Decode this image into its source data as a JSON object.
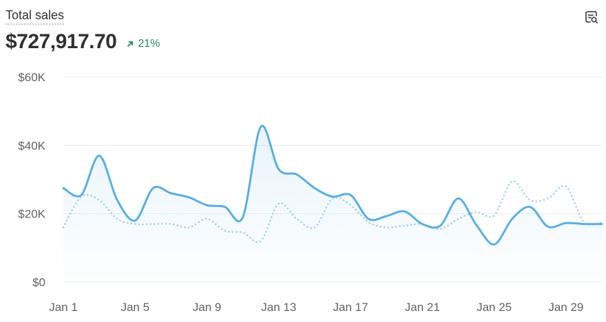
{
  "card": {
    "title": "Total sales",
    "total": "$727,917.70",
    "delta": "21%",
    "delta_color": "#29845a",
    "delta_icon": "arrow-up-right-icon",
    "action_icon": "report-search-icon"
  },
  "chart_data": {
    "type": "line",
    "title": "Total sales",
    "xlabel": "",
    "ylabel": "",
    "ylim": [
      0,
      60000
    ],
    "yticks": [
      "$0",
      "$20K",
      "$40K",
      "$60K"
    ],
    "ytick_values": [
      0,
      20000,
      40000,
      60000
    ],
    "xticks": [
      "Jan 1",
      "Jan 5",
      "Jan 9",
      "Jan 13",
      "Jan 17",
      "Jan 21",
      "Jan 25",
      "Jan 29"
    ],
    "xtick_positions": [
      1,
      5,
      9,
      13,
      17,
      21,
      25,
      29
    ],
    "grid": true,
    "legend": "none",
    "x": [
      1,
      2,
      3,
      4,
      5,
      6,
      7,
      8,
      9,
      10,
      11,
      12,
      13,
      14,
      15,
      16,
      17,
      18,
      19,
      20,
      21,
      22,
      23,
      24,
      25,
      26,
      27,
      28,
      29,
      30,
      31
    ],
    "series": [
      {
        "style": "solid",
        "color": "#5aaede",
        "values": [
          27500,
          25500,
          37000,
          24000,
          18000,
          27500,
          26000,
          24800,
          22500,
          22000,
          19000,
          45500,
          33000,
          31500,
          27500,
          25000,
          25500,
          18500,
          19300,
          20700,
          17000,
          16500,
          24500,
          16800,
          11000,
          18500,
          22000,
          16200,
          17300,
          17000,
          17000
        ]
      },
      {
        "style": "dotted",
        "color": "#a3cfe8",
        "values": [
          16000,
          25000,
          24000,
          18500,
          17000,
          17000,
          17000,
          16000,
          18500,
          15000,
          14500,
          12000,
          23000,
          18500,
          16000,
          24500,
          22500,
          17500,
          16000,
          16500,
          17000,
          15500,
          18500,
          20500,
          19500,
          29500,
          24000,
          24500,
          28000,
          17500,
          17500
        ]
      }
    ]
  }
}
